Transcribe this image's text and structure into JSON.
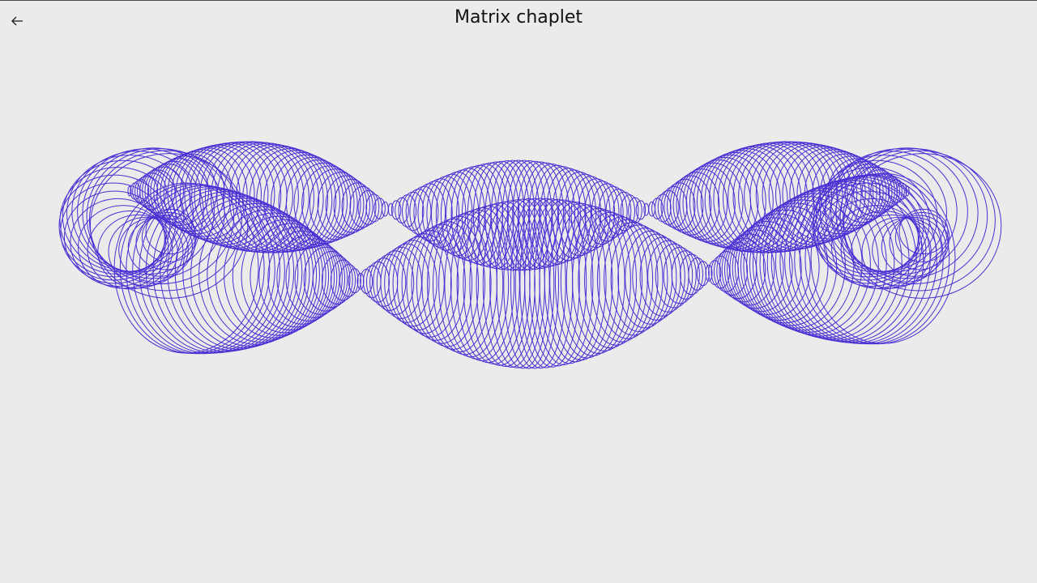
{
  "header": {
    "title": "Matrix chaplet",
    "back_icon": "arrow-left-icon"
  },
  "canvas": {
    "stroke_color": "#4b2fd4",
    "background": "#ebebeb"
  }
}
